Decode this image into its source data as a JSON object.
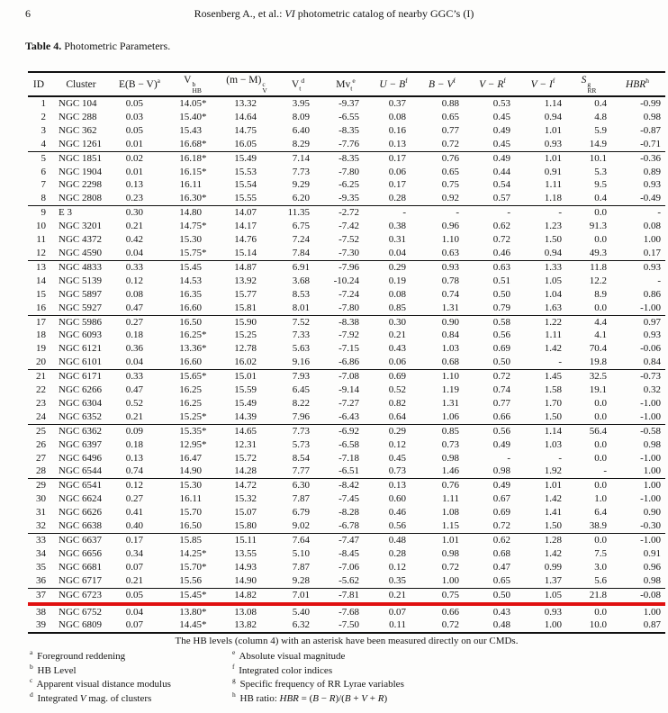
{
  "page": {
    "number": "6",
    "running_header_parts": [
      {
        "t": "r",
        "v": "Rosenberg A., et al.: "
      },
      {
        "t": "i",
        "v": "VI"
      },
      {
        "t": "r",
        "v": " photometric catalog of nearby GGC’s (I)"
      }
    ]
  },
  "caption": {
    "label": "Table 4.",
    "text": " Photometric Parameters."
  },
  "table": {
    "columns": [
      {
        "name": "ID"
      },
      {
        "name": "Cluster"
      },
      {
        "name": "E(B − V)",
        "sup": "a"
      },
      {
        "name": "V",
        "sup": "b",
        "sub": "HB",
        "style": "stack"
      },
      {
        "name": "(m − M)",
        "sup": "c",
        "sub": "V",
        "style": "stack"
      },
      {
        "name": "V",
        "sub": "t",
        "sup": "d",
        "style": "seq"
      },
      {
        "name": "Mv",
        "sub": "t",
        "sup": "e",
        "style": "seq"
      },
      {
        "name": "U − B",
        "sup": "f",
        "italic": true
      },
      {
        "name": "B − V",
        "sup": "f",
        "italic": true
      },
      {
        "name": "V − R",
        "sup": "f",
        "italic": true
      },
      {
        "name": "V − I",
        "sup": "f",
        "italic": true
      },
      {
        "name": "S",
        "sup": "g",
        "sub": "RR",
        "style": "stack",
        "italic": true
      },
      {
        "name": "HBR",
        "sup": "h",
        "italic": true
      }
    ],
    "rows": [
      [
        "1",
        "NGC 104",
        "0.05",
        "14.05*",
        "13.32",
        "3.95",
        "-9.37",
        "0.37",
        "0.88",
        "0.53",
        "1.14",
        "0.4",
        "-0.99"
      ],
      [
        "2",
        "NGC 288",
        "0.03",
        "15.40*",
        "14.64",
        "8.09",
        "-6.55",
        "0.08",
        "0.65",
        "0.45",
        "0.94",
        "4.8",
        "0.98"
      ],
      [
        "3",
        "NGC 362",
        "0.05",
        "15.43",
        "14.75",
        "6.40",
        "-8.35",
        "0.16",
        "0.77",
        "0.49",
        "1.01",
        "5.9",
        "-0.87"
      ],
      [
        "4",
        "NGC 1261",
        "0.01",
        "16.68*",
        "16.05",
        "8.29",
        "-7.76",
        "0.13",
        "0.72",
        "0.45",
        "0.93",
        "14.9",
        "-0.71"
      ],
      [
        "5",
        "NGC 1851",
        "0.02",
        "16.18*",
        "15.49",
        "7.14",
        "-8.35",
        "0.17",
        "0.76",
        "0.49",
        "1.01",
        "10.1",
        "-0.36"
      ],
      [
        "6",
        "NGC 1904",
        "0.01",
        "16.15*",
        "15.53",
        "7.73",
        "-7.80",
        "0.06",
        "0.65",
        "0.44",
        "0.91",
        "5.3",
        "0.89"
      ],
      [
        "7",
        "NGC 2298",
        "0.13",
        "16.11",
        "15.54",
        "9.29",
        "-6.25",
        "0.17",
        "0.75",
        "0.54",
        "1.11",
        "9.5",
        "0.93"
      ],
      [
        "8",
        "NGC 2808",
        "0.23",
        "16.30*",
        "15.55",
        "6.20",
        "-9.35",
        "0.28",
        "0.92",
        "0.57",
        "1.18",
        "0.4",
        "-0.49"
      ],
      [
        "9",
        "E 3",
        "0.30",
        "14.80",
        "14.07",
        "11.35",
        "-2.72",
        "-",
        "-",
        "-",
        "-",
        "0.0",
        "-"
      ],
      [
        "10",
        "NGC 3201",
        "0.21",
        "14.75*",
        "14.17",
        "6.75",
        "-7.42",
        "0.38",
        "0.96",
        "0.62",
        "1.23",
        "91.3",
        "0.08"
      ],
      [
        "11",
        "NGC 4372",
        "0.42",
        "15.30",
        "14.76",
        "7.24",
        "-7.52",
        "0.31",
        "1.10",
        "0.72",
        "1.50",
        "0.0",
        "1.00"
      ],
      [
        "12",
        "NGC 4590",
        "0.04",
        "15.75*",
        "15.14",
        "7.84",
        "-7.30",
        "0.04",
        "0.63",
        "0.46",
        "0.94",
        "49.3",
        "0.17"
      ],
      [
        "13",
        "NGC 4833",
        "0.33",
        "15.45",
        "14.87",
        "6.91",
        "-7.96",
        "0.29",
        "0.93",
        "0.63",
        "1.33",
        "11.8",
        "0.93"
      ],
      [
        "14",
        "NGC 5139",
        "0.12",
        "14.53",
        "13.92",
        "3.68",
        "-10.24",
        "0.19",
        "0.78",
        "0.51",
        "1.05",
        "12.2",
        "-"
      ],
      [
        "15",
        "NGC 5897",
        "0.08",
        "16.35",
        "15.77",
        "8.53",
        "-7.24",
        "0.08",
        "0.74",
        "0.50",
        "1.04",
        "8.9",
        "0.86"
      ],
      [
        "16",
        "NGC 5927",
        "0.47",
        "16.60",
        "15.81",
        "8.01",
        "-7.80",
        "0.85",
        "1.31",
        "0.79",
        "1.63",
        "0.0",
        "-1.00"
      ],
      [
        "17",
        "NGC 5986",
        "0.27",
        "16.50",
        "15.90",
        "7.52",
        "-8.38",
        "0.30",
        "0.90",
        "0.58",
        "1.22",
        "4.4",
        "0.97"
      ],
      [
        "18",
        "NGC 6093",
        "0.18",
        "16.25*",
        "15.25",
        "7.33",
        "-7.92",
        "0.21",
        "0.84",
        "0.56",
        "1.11",
        "4.1",
        "0.93"
      ],
      [
        "19",
        "NGC 6121",
        "0.36",
        "13.36*",
        "12.78",
        "5.63",
        "-7.15",
        "0.43",
        "1.03",
        "0.69",
        "1.42",
        "70.4",
        "-0.06"
      ],
      [
        "20",
        "NGC 6101",
        "0.04",
        "16.60",
        "16.02",
        "9.16",
        "-6.86",
        "0.06",
        "0.68",
        "0.50",
        "-",
        "19.8",
        "0.84"
      ],
      [
        "21",
        "NGC 6171",
        "0.33",
        "15.65*",
        "15.01",
        "7.93",
        "-7.08",
        "0.69",
        "1.10",
        "0.72",
        "1.45",
        "32.5",
        "-0.73"
      ],
      [
        "22",
        "NGC 6266",
        "0.47",
        "16.25",
        "15.59",
        "6.45",
        "-9.14",
        "0.52",
        "1.19",
        "0.74",
        "1.58",
        "19.1",
        "0.32"
      ],
      [
        "23",
        "NGC 6304",
        "0.52",
        "16.25",
        "15.49",
        "8.22",
        "-7.27",
        "0.82",
        "1.31",
        "0.77",
        "1.70",
        "0.0",
        "-1.00"
      ],
      [
        "24",
        "NGC 6352",
        "0.21",
        "15.25*",
        "14.39",
        "7.96",
        "-6.43",
        "0.64",
        "1.06",
        "0.66",
        "1.50",
        "0.0",
        "-1.00"
      ],
      [
        "25",
        "NGC 6362",
        "0.09",
        "15.35*",
        "14.65",
        "7.73",
        "-6.92",
        "0.29",
        "0.85",
        "0.56",
        "1.14",
        "56.4",
        "-0.58"
      ],
      [
        "26",
        "NGC 6397",
        "0.18",
        "12.95*",
        "12.31",
        "5.73",
        "-6.58",
        "0.12",
        "0.73",
        "0.49",
        "1.03",
        "0.0",
        "0.98"
      ],
      [
        "27",
        "NGC 6496",
        "0.13",
        "16.47",
        "15.72",
        "8.54",
        "-7.18",
        "0.45",
        "0.98",
        "-",
        "-",
        "0.0",
        "-1.00"
      ],
      [
        "28",
        "NGC 6544",
        "0.74",
        "14.90",
        "14.28",
        "7.77",
        "-6.51",
        "0.73",
        "1.46",
        "0.98",
        "1.92",
        "-",
        "1.00"
      ],
      [
        "29",
        "NGC 6541",
        "0.12",
        "15.30",
        "14.72",
        "6.30",
        "-8.42",
        "0.13",
        "0.76",
        "0.49",
        "1.01",
        "0.0",
        "1.00"
      ],
      [
        "30",
        "NGC 6624",
        "0.27",
        "16.11",
        "15.32",
        "7.87",
        "-7.45",
        "0.60",
        "1.11",
        "0.67",
        "1.42",
        "1.0",
        "-1.00"
      ],
      [
        "31",
        "NGC 6626",
        "0.41",
        "15.70",
        "15.07",
        "6.79",
        "-8.28",
        "0.46",
        "1.08",
        "0.69",
        "1.41",
        "6.4",
        "0.90"
      ],
      [
        "32",
        "NGC 6638",
        "0.40",
        "16.50",
        "15.80",
        "9.02",
        "-6.78",
        "0.56",
        "1.15",
        "0.72",
        "1.50",
        "38.9",
        "-0.30"
      ],
      [
        "33",
        "NGC 6637",
        "0.17",
        "15.85",
        "15.11",
        "7.64",
        "-7.47",
        "0.48",
        "1.01",
        "0.62",
        "1.28",
        "0.0",
        "-1.00"
      ],
      [
        "34",
        "NGC 6656",
        "0.34",
        "14.25*",
        "13.55",
        "5.10",
        "-8.45",
        "0.28",
        "0.98",
        "0.68",
        "1.42",
        "7.5",
        "0.91"
      ],
      [
        "35",
        "NGC 6681",
        "0.07",
        "15.70*",
        "14.93",
        "7.87",
        "-7.06",
        "0.12",
        "0.72",
        "0.47",
        "0.99",
        "3.0",
        "0.96"
      ],
      [
        "36",
        "NGC 6717",
        "0.21",
        "15.56",
        "14.90",
        "9.28",
        "-5.62",
        "0.35",
        "1.00",
        "0.65",
        "1.37",
        "5.6",
        "0.98"
      ],
      [
        "37",
        "NGC 6723",
        "0.05",
        "15.45*",
        "14.82",
        "7.01",
        "-7.81",
        "0.21",
        "0.75",
        "0.50",
        "1.05",
        "21.8",
        "-0.08"
      ],
      [
        "38",
        "NGC 6752",
        "0.04",
        "13.80*",
        "13.08",
        "5.40",
        "-7.68",
        "0.07",
        "0.66",
        "0.43",
        "0.93",
        "0.0",
        "1.00"
      ],
      [
        "39",
        "NGC 6809",
        "0.07",
        "14.45*",
        "13.82",
        "6.32",
        "-7.50",
        "0.11",
        "0.72",
        "0.48",
        "1.00",
        "10.0",
        "0.87"
      ]
    ],
    "group_break_before_ids": [
      5,
      9,
      13,
      17,
      21,
      25,
      29,
      33,
      37
    ],
    "highlight_row_id": 37,
    "highlight_color": "#e01010",
    "note": "The HB levels (column 4) with an asterisk have been measured directly on our CMDs."
  },
  "footnotes": {
    "left": [
      {
        "marker": "a",
        "parts": [
          {
            "t": "r",
            "v": "Foreground reddening"
          }
        ]
      },
      {
        "marker": "b",
        "parts": [
          {
            "t": "r",
            "v": "HB Level"
          }
        ]
      },
      {
        "marker": "c",
        "parts": [
          {
            "t": "r",
            "v": "Apparent visual distance modulus"
          }
        ]
      },
      {
        "marker": "d",
        "parts": [
          {
            "t": "r",
            "v": "Integrated "
          },
          {
            "t": "i",
            "v": "V"
          },
          {
            "t": "r",
            "v": " mag. of clusters"
          }
        ]
      }
    ],
    "right": [
      {
        "marker": "e",
        "parts": [
          {
            "t": "r",
            "v": "Absolute visual magnitude"
          }
        ]
      },
      {
        "marker": "f",
        "parts": [
          {
            "t": "r",
            "v": "Integrated color indices"
          }
        ]
      },
      {
        "marker": "g",
        "parts": [
          {
            "t": "r",
            "v": "Specific frequency of RR Lyrae variables"
          }
        ]
      },
      {
        "marker": "h",
        "parts": [
          {
            "t": "r",
            "v": "HB ratio: "
          },
          {
            "t": "i",
            "v": "HBR"
          },
          {
            "t": "r",
            "v": " = ("
          },
          {
            "t": "i",
            "v": "B"
          },
          {
            "t": "r",
            "v": " − "
          },
          {
            "t": "i",
            "v": "R"
          },
          {
            "t": "r",
            "v": ")/("
          },
          {
            "t": "i",
            "v": "B"
          },
          {
            "t": "r",
            "v": " + "
          },
          {
            "t": "i",
            "v": "V"
          },
          {
            "t": "r",
            "v": " + "
          },
          {
            "t": "i",
            "v": "R"
          },
          {
            "t": "r",
            "v": ")"
          }
        ]
      }
    ]
  }
}
